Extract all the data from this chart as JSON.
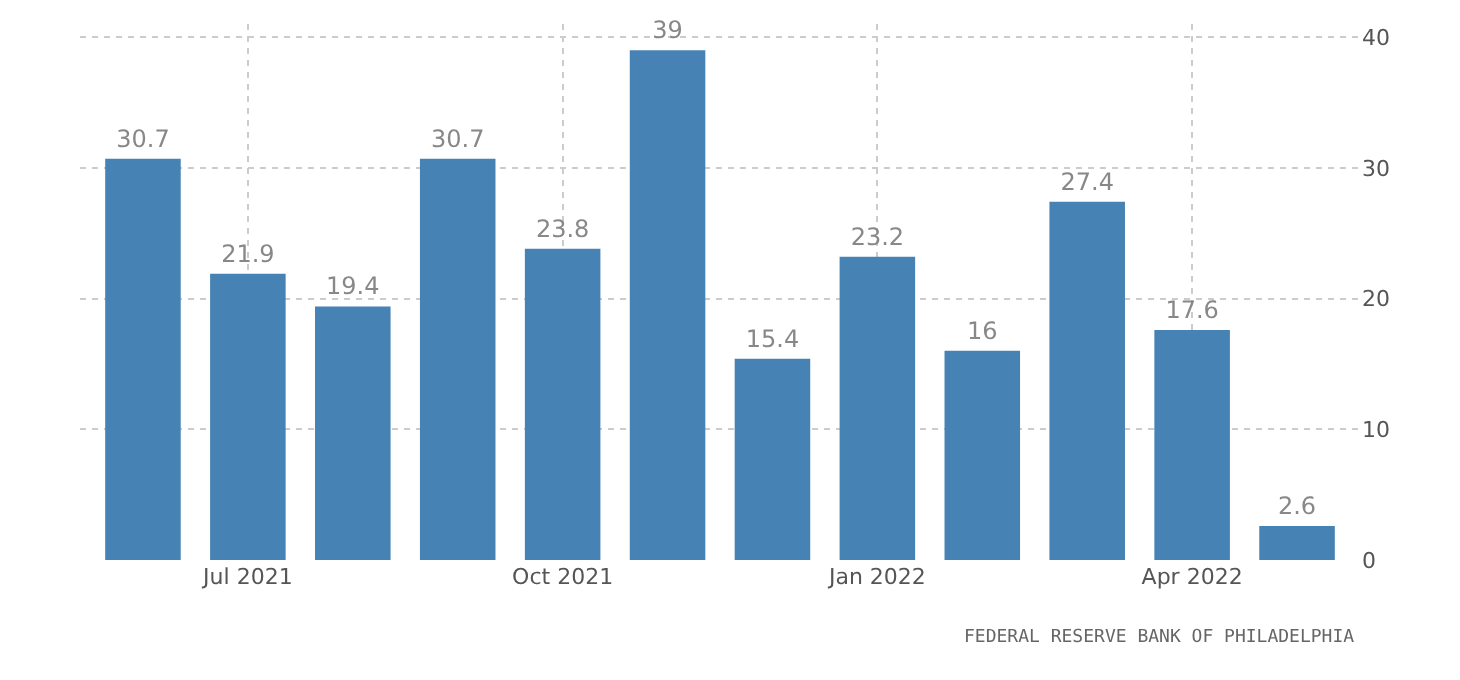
{
  "chart_data": {
    "type": "bar",
    "categories": [
      null,
      "Jul 2021",
      null,
      null,
      "Oct 2021",
      null,
      null,
      "Jan 2022",
      null,
      null,
      "Apr 2022",
      null
    ],
    "values": [
      30.7,
      21.9,
      19.4,
      30.7,
      23.8,
      39,
      15.4,
      23.2,
      16,
      27.4,
      17.6,
      2.6
    ],
    "color": "#4682b4",
    "ylim": [
      0,
      41
    ],
    "yticks": [
      0,
      10,
      20,
      30,
      40
    ],
    "grid": true,
    "data_labels": true,
    "annotations": [
      "FEDERAL RESERVE BANK OF PHILADELPHIA"
    ]
  }
}
